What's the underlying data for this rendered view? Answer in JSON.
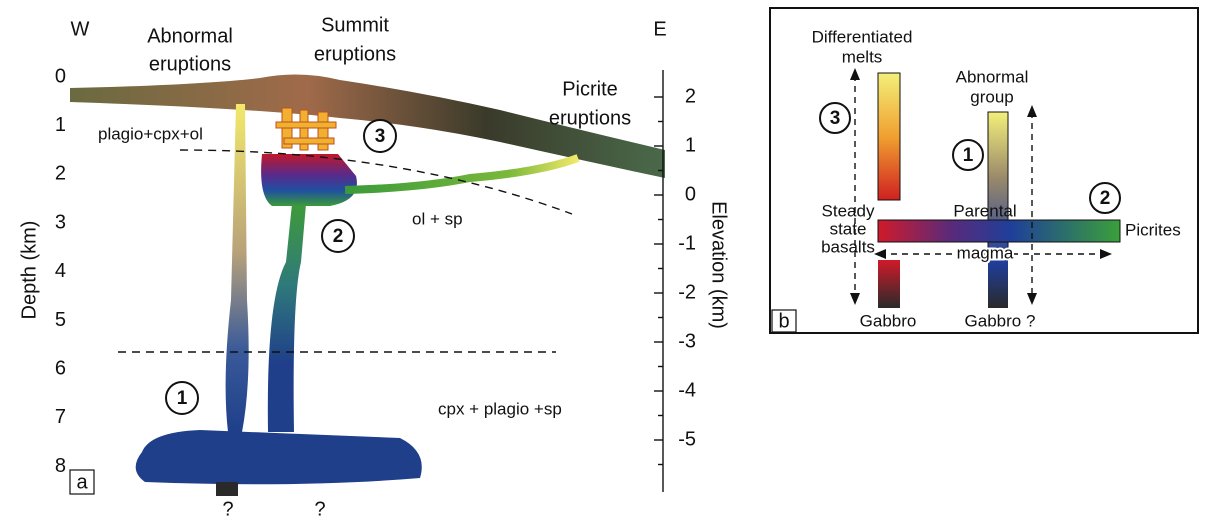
{
  "panel_a": {
    "label": "a",
    "west": "W",
    "east": "E",
    "depth_axis": {
      "title": "Depth (km)",
      "ticks": [
        "0",
        "1",
        "2",
        "3",
        "4",
        "5",
        "6",
        "7",
        "8"
      ]
    },
    "elevation_axis": {
      "title": "Elevation (km)",
      "ticks": [
        "2",
        "1",
        "0",
        "-1",
        "-2",
        "-3",
        "-4",
        "-5"
      ]
    },
    "eruptions": {
      "abnormal": [
        "Abnormal",
        "eruptions"
      ],
      "summit": [
        "Summit",
        "eruptions"
      ],
      "picrite": [
        "Picrite",
        "eruptions"
      ]
    },
    "assemblages": {
      "upper": "plagio+cpx+ol",
      "middle": "ol + sp",
      "lower": "cpx + plagio +sp"
    },
    "markers": [
      "1",
      "2",
      "3"
    ],
    "unknowns": [
      "?",
      "?"
    ]
  },
  "panel_b": {
    "label": "b",
    "differentiated": [
      "Differentiated",
      "melts"
    ],
    "abnormal": [
      "Abnormal",
      "group"
    ],
    "steady": [
      "Steady",
      "state",
      "basalts"
    ],
    "parental": [
      "Parental",
      "magma"
    ],
    "picrites": "Picrites",
    "gabbro_left": "Gabbro",
    "gabbro_right": "Gabbro ?",
    "markers": [
      "1",
      "2",
      "3"
    ]
  }
}
